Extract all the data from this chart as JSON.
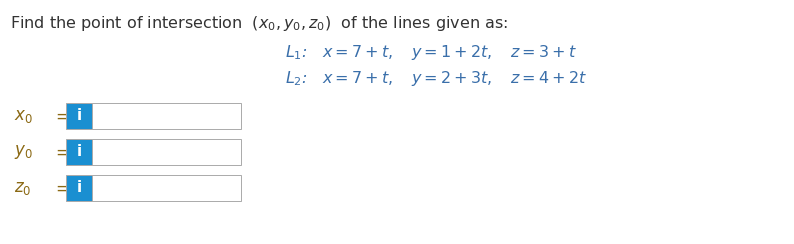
{
  "title_plain": "Find the point of intersection ",
  "title_math": "$(x_0, y_0, z_0)$",
  "title_suffix": " of the lines given as:",
  "title_color": "#333333",
  "title_fontsize": 11.5,
  "eq_color": "#3a6faa",
  "eq_fontsize": 11.5,
  "line1": "$L_1$:   $x = 7 + t, \\quad y = 1 + 2t, \\quad z = 3 + t$",
  "line2": "$L_2$:   $x = 7 + t, \\quad y = 2 + 3t, \\quad z = 4 + 2t$",
  "labels": [
    "$x_0$",
    "$y_0$",
    "$z_0$"
  ],
  "label_color": "#8b6914",
  "label_fontsize": 12,
  "box_blue": "#1a8fd1",
  "box_white": "#ffffff",
  "box_border": "#aaaaaa",
  "icon_color": "#ffffff",
  "icon_fontsize": 11,
  "background": "#ffffff",
  "fig_width": 7.94,
  "fig_height": 2.44,
  "dpi": 100
}
